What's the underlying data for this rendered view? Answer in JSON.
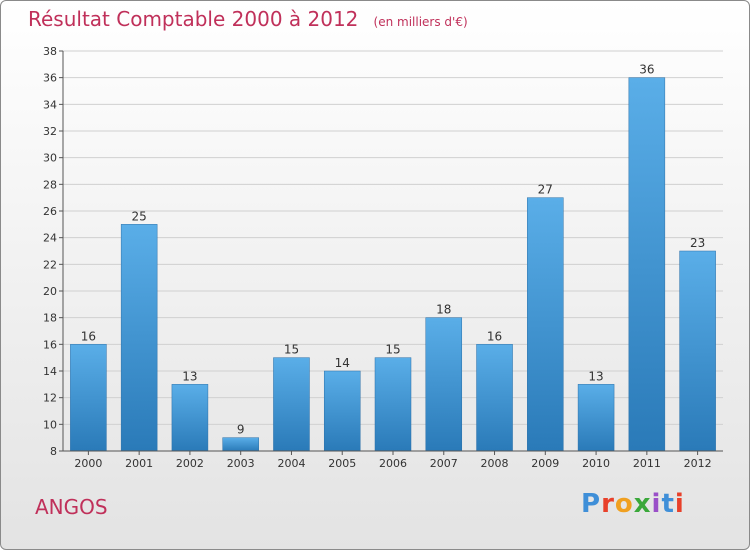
{
  "title": "Résultat Comptable 2000 à 2012",
  "subtitle": "(en milliers d'€)",
  "town": "ANGOS",
  "brand": "Proxiti",
  "colors": {
    "title": "#c0305a",
    "bar_top": "#5aaee8",
    "bar_bottom": "#2a7ab8",
    "grid": "#d0d0d0"
  },
  "chart_data": {
    "type": "bar",
    "categories": [
      "2000",
      "2001",
      "2002",
      "2003",
      "2004",
      "2005",
      "2006",
      "2007",
      "2008",
      "2009",
      "2010",
      "2011",
      "2012"
    ],
    "values": [
      16,
      25,
      13,
      9,
      15,
      14,
      15,
      18,
      16,
      27,
      13,
      36,
      23
    ],
    "ylim": [
      8,
      38
    ],
    "yticks": [
      8,
      10,
      12,
      14,
      16,
      18,
      20,
      22,
      24,
      26,
      28,
      30,
      32,
      34,
      36,
      38
    ],
    "grid": true,
    "data_labels": true
  }
}
